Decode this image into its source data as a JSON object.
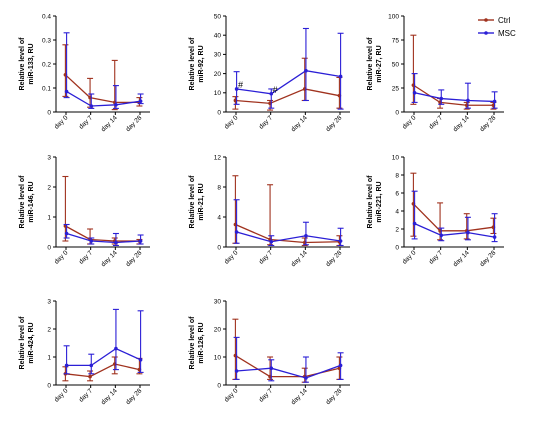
{
  "legend": [
    {
      "label": "Ctrl",
      "color": "#a0321e"
    },
    {
      "label": "MSC",
      "color": "#2b1fd6"
    }
  ],
  "chart_data": [
    {
      "type": "line",
      "ylabel": [
        "Relative level of",
        "miR-133, RU"
      ],
      "categories": [
        "day 0",
        "day 7",
        "day 14",
        "day 28"
      ],
      "ylim": [
        0,
        0.4
      ],
      "yticks": [
        "0",
        "0.1",
        "0.2",
        "0.3",
        "0.4"
      ],
      "series": [
        {
          "name": "Ctrl",
          "values": [
            0.155,
            0.06,
            0.04,
            0.04
          ],
          "upper": [
            0.28,
            0.14,
            0.215,
            0.06
          ],
          "lower": [
            0.065,
            0.02,
            0.01,
            0.025
          ]
        },
        {
          "name": "MSC",
          "values": [
            0.085,
            0.025,
            0.03,
            0.045
          ],
          "upper": [
            0.33,
            0.075,
            0.11,
            0.075
          ],
          "lower": [
            0.06,
            0.015,
            0.015,
            0.035
          ]
        }
      ],
      "annotations": []
    },
    {
      "type": "line",
      "ylabel": [
        "Relative level of",
        "miR-92, RU"
      ],
      "categories": [
        "day 0",
        "day 7",
        "day 14",
        "day 28"
      ],
      "ylim": [
        0,
        50
      ],
      "yticks": [
        "0",
        "10",
        "20",
        "30",
        "40",
        "50"
      ],
      "series": [
        {
          "name": "Ctrl",
          "values": [
            6,
            4.5,
            12,
            8.5
          ],
          "upper": [
            8,
            6,
            28,
            18
          ],
          "lower": [
            1.5,
            1,
            6,
            2
          ]
        },
        {
          "name": "MSC",
          "values": [
            12,
            9.5,
            21.5,
            18.5
          ],
          "upper": [
            21,
            12,
            43.5,
            41
          ],
          "lower": [
            4,
            2,
            6,
            1.5
          ]
        }
      ],
      "annotations": [
        {
          "text": "#",
          "category": 0,
          "value": 12
        },
        {
          "text": "#",
          "category": 1,
          "value": 9.5
        }
      ]
    },
    {
      "type": "line",
      "ylabel": [
        "Relative level of",
        "miR-27, RU"
      ],
      "categories": [
        "day 0",
        "day 7",
        "day 14",
        "day 28"
      ],
      "ylim": [
        0,
        100
      ],
      "yticks": [
        "0",
        "25",
        "50",
        "75",
        "100"
      ],
      "series": [
        {
          "name": "Ctrl",
          "values": [
            28,
            10,
            7,
            7
          ],
          "upper": [
            80,
            14,
            10,
            10
          ],
          "lower": [
            8,
            4,
            3,
            3
          ]
        },
        {
          "name": "MSC",
          "values": [
            20,
            14,
            12,
            11
          ],
          "upper": [
            40,
            23,
            30,
            21
          ],
          "lower": [
            10,
            8,
            4,
            4
          ]
        }
      ],
      "annotations": []
    },
    {
      "type": "line",
      "ylabel": [
        "Relative level of",
        "miR-146, RU"
      ],
      "categories": [
        "day 0",
        "day 7",
        "day 14",
        "day 28"
      ],
      "ylim": [
        0,
        3
      ],
      "yticks": [
        "0",
        "1",
        "2",
        "3"
      ],
      "series": [
        {
          "name": "Ctrl",
          "values": [
            0.7,
            0.25,
            0.2,
            0.2
          ],
          "upper": [
            2.35,
            0.6,
            0.3,
            0.25
          ],
          "lower": [
            0.2,
            0.1,
            0.1,
            0.1
          ]
        },
        {
          "name": "MSC",
          "values": [
            0.45,
            0.2,
            0.15,
            0.2
          ],
          "upper": [
            0.75,
            0.3,
            0.45,
            0.4
          ],
          "lower": [
            0.3,
            0.1,
            0.05,
            0.1
          ]
        }
      ],
      "annotations": []
    },
    {
      "type": "line",
      "ylabel": [
        "Relative level of",
        "miR-21, RU"
      ],
      "categories": [
        "day 0",
        "day 7",
        "day 14",
        "day 28"
      ],
      "ylim": [
        0,
        12
      ],
      "yticks": [
        "0",
        "4",
        "8",
        "12"
      ],
      "series": [
        {
          "name": "Ctrl",
          "values": [
            3,
            1,
            0.6,
            0.7
          ],
          "upper": [
            9.5,
            8.3,
            1.2,
            1.5
          ],
          "lower": [
            0.5,
            0.3,
            0.2,
            0.2
          ]
        },
        {
          "name": "MSC",
          "values": [
            2,
            0.7,
            1.5,
            0.8
          ],
          "upper": [
            6.3,
            1.5,
            3.3,
            2.5
          ],
          "lower": [
            0.5,
            0.2,
            0.3,
            0.2
          ]
        }
      ],
      "annotations": []
    },
    {
      "type": "line",
      "ylabel": [
        "Relative level of",
        "miR-221, RU"
      ],
      "categories": [
        "day 0",
        "day 7",
        "day 14",
        "day 28"
      ],
      "ylim": [
        0,
        10
      ],
      "yticks": [
        "0",
        "2",
        "4",
        "6",
        "8",
        "10"
      ],
      "series": [
        {
          "name": "Ctrl",
          "values": [
            4.8,
            1.8,
            1.8,
            2.2
          ],
          "upper": [
            8.2,
            4.9,
            3.7,
            3.2
          ],
          "lower": [
            1.2,
            0.8,
            0.9,
            1.5
          ]
        },
        {
          "name": "MSC",
          "values": [
            2.6,
            1.3,
            1.6,
            1.1
          ],
          "upper": [
            6.2,
            2.1,
            3.3,
            3.7
          ],
          "lower": [
            0.9,
            0.7,
            0.8,
            0.6
          ]
        }
      ],
      "annotations": []
    },
    {
      "type": "line",
      "ylabel": [
        "Relative level of",
        "miR-424, RU"
      ],
      "categories": [
        "day 0",
        "day 7",
        "day 14",
        "day 28"
      ],
      "ylim": [
        0,
        3
      ],
      "yticks": [
        "0",
        "1",
        "2",
        "3"
      ],
      "series": [
        {
          "name": "Ctrl",
          "values": [
            0.4,
            0.3,
            0.75,
            0.55
          ],
          "upper": [
            0.65,
            0.5,
            1.0,
            0.95
          ],
          "lower": [
            0.15,
            0.15,
            0.4,
            0.4
          ]
        },
        {
          "name": "MSC",
          "values": [
            0.7,
            0.7,
            1.3,
            0.9
          ],
          "upper": [
            1.4,
            1.1,
            2.7,
            2.65
          ],
          "lower": [
            0.4,
            0.4,
            0.55,
            0.45
          ]
        }
      ],
      "annotations": []
    },
    {
      "type": "line",
      "ylabel": [
        "Relative level of",
        "miR-126, RU"
      ],
      "categories": [
        "day 0",
        "day 7",
        "day 14",
        "day 28"
      ],
      "ylim": [
        0,
        30
      ],
      "yticks": [
        "0",
        "10",
        "20",
        "30"
      ],
      "series": [
        {
          "name": "Ctrl",
          "values": [
            10.5,
            3,
            3,
            6
          ],
          "upper": [
            23.5,
            10,
            6,
            10
          ],
          "lower": [
            2,
            2,
            1,
            2
          ]
        },
        {
          "name": "MSC",
          "values": [
            5,
            6,
            2.5,
            7
          ],
          "upper": [
            17,
            9,
            10,
            11.5
          ],
          "lower": [
            2,
            1.5,
            1,
            2
          ]
        }
      ],
      "annotations": []
    }
  ]
}
